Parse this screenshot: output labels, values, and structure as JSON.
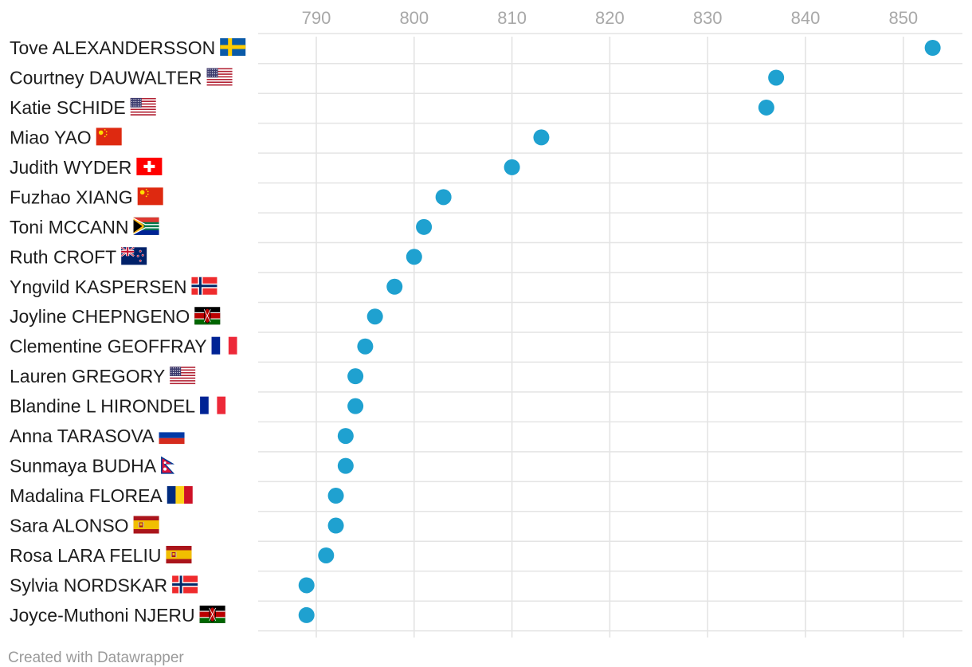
{
  "chart_data": {
    "type": "scatter",
    "title": "",
    "xlabel": "",
    "ylabel": "",
    "xlim": [
      784,
      856
    ],
    "x_ticks": [
      790,
      800,
      810,
      820,
      830,
      840,
      850
    ],
    "grid": true,
    "legend": "none",
    "dot_color": "#1fa1d0",
    "series": [
      {
        "points": [
          {
            "name": "Tove ALEXANDERSSON",
            "country": "SWE",
            "value": 853
          },
          {
            "name": "Courtney DAUWALTER",
            "country": "USA",
            "value": 837
          },
          {
            "name": "Katie SCHIDE",
            "country": "USA",
            "value": 836
          },
          {
            "name": "Miao YAO",
            "country": "CHN",
            "value": 813
          },
          {
            "name": "Judith WYDER",
            "country": "SUI",
            "value": 810
          },
          {
            "name": "Fuzhao XIANG",
            "country": "CHN",
            "value": 803
          },
          {
            "name": "Toni MCCANN",
            "country": "RSA",
            "value": 801
          },
          {
            "name": "Ruth CROFT",
            "country": "NZL",
            "value": 800
          },
          {
            "name": "Yngvild KASPERSEN",
            "country": "NOR",
            "value": 798
          },
          {
            "name": "Joyline CHEPNGENO",
            "country": "KEN",
            "value": 796
          },
          {
            "name": "Clementine GEOFFRAY",
            "country": "FRA",
            "value": 795
          },
          {
            "name": "Lauren GREGORY",
            "country": "USA",
            "value": 794
          },
          {
            "name": "Blandine L HIRONDEL",
            "country": "FRA",
            "value": 794
          },
          {
            "name": "Anna TARASOVA",
            "country": "RUS",
            "value": 793
          },
          {
            "name": "Sunmaya BUDHA",
            "country": "NEP",
            "value": 793
          },
          {
            "name": "Madalina FLOREA",
            "country": "ROU",
            "value": 792
          },
          {
            "name": "Sara ALONSO",
            "country": "ESP",
            "value": 792
          },
          {
            "name": "Rosa LARA FELIU",
            "country": "ESP",
            "value": 791
          },
          {
            "name": "Sylvia NORDSKAR",
            "country": "NOR",
            "value": 789
          },
          {
            "name": "Joyce-Muthoni NJERU",
            "country": "KEN",
            "value": 789
          }
        ]
      }
    ]
  },
  "footer": {
    "credit": "Created with Datawrapper"
  }
}
